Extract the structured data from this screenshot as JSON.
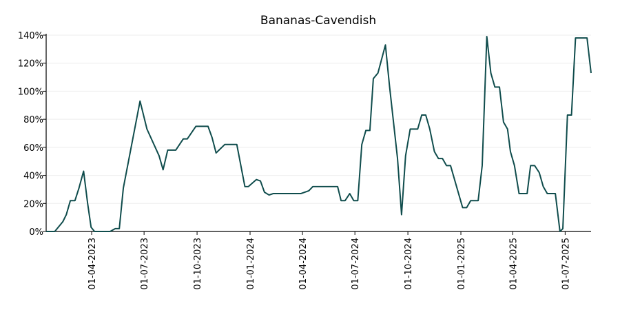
{
  "chart_data": {
    "type": "line",
    "title": "Bananas-Cavendish",
    "x": [
      "2023-01-12",
      "2023-01-27",
      "2023-02-10",
      "2023-02-16",
      "2023-02-23",
      "2023-03-03",
      "2023-03-10",
      "2023-03-18",
      "2023-03-25",
      "2023-03-31",
      "2023-04-06",
      "2023-05-03",
      "2023-05-12",
      "2023-05-19",
      "2023-05-26",
      "2023-06-24",
      "2023-07-06",
      "2023-07-27",
      "2023-08-03",
      "2023-08-11",
      "2023-08-25",
      "2023-09-07",
      "2023-09-14",
      "2023-09-29",
      "2023-10-20",
      "2023-10-27",
      "2023-11-03",
      "2023-11-18",
      "2023-12-09",
      "2023-12-23",
      "2023-12-29",
      "2024-01-12",
      "2024-01-19",
      "2024-01-26",
      "2024-02-03",
      "2024-02-10",
      "2024-03-29",
      "2024-04-12",
      "2024-04-19",
      "2024-06-01",
      "2024-06-07",
      "2024-06-14",
      "2024-06-22",
      "2024-06-29",
      "2024-07-06",
      "2024-07-13",
      "2024-07-20",
      "2024-07-27",
      "2024-08-02",
      "2024-08-10",
      "2024-08-23",
      "2024-08-30",
      "2024-09-13",
      "2024-09-20",
      "2024-09-27",
      "2024-10-05",
      "2024-10-18",
      "2024-10-25",
      "2024-11-01",
      "2024-11-08",
      "2024-11-16",
      "2024-11-23",
      "2024-11-30",
      "2024-12-07",
      "2024-12-14",
      "2025-01-04",
      "2025-01-11",
      "2025-01-18",
      "2025-01-31",
      "2025-02-07",
      "2025-02-15",
      "2025-02-22",
      "2025-03-01",
      "2025-03-09",
      "2025-03-16",
      "2025-03-23",
      "2025-03-28",
      "2025-04-04",
      "2025-04-12",
      "2025-04-26",
      "2025-05-02",
      "2025-05-09",
      "2025-05-17",
      "2025-05-24",
      "2025-05-31",
      "2025-06-14",
      "2025-06-22",
      "2025-06-27",
      "2025-07-05",
      "2025-07-12",
      "2025-07-19",
      "2025-08-08",
      "2025-08-15"
    ],
    "series": [
      {
        "name": "Bananas-Cavendish",
        "color": "#0f4c4c",
        "values": [
          0,
          0,
          7,
          12,
          22,
          22,
          31,
          43,
          20,
          3,
          0,
          0,
          2,
          2,
          31,
          93,
          73,
          54,
          44,
          58,
          58,
          66,
          66,
          75,
          75,
          67,
          56,
          62,
          62,
          32,
          32,
          37,
          36,
          28,
          26,
          27,
          27,
          29,
          32,
          32,
          22,
          22,
          27,
          22,
          22,
          62,
          72,
          72,
          109,
          113,
          133,
          104,
          52,
          12,
          54,
          73,
          73,
          83,
          83,
          73,
          57,
          52,
          52,
          47,
          47,
          17,
          17,
          22,
          22,
          47,
          139,
          113,
          103,
          103,
          78,
          73,
          57,
          47,
          27,
          27,
          47,
          47,
          42,
          32,
          27,
          27,
          0,
          2,
          83,
          83,
          138,
          138,
          113
        ]
      }
    ],
    "xlim": [
      "2023-01-12",
      "2025-08-15"
    ],
    "xticks": [
      {
        "value": "2023-04-01",
        "label": "01-04-2023"
      },
      {
        "value": "2023-07-01",
        "label": "01-07-2023"
      },
      {
        "value": "2023-10-01",
        "label": "01-10-2023"
      },
      {
        "value": "2024-01-01",
        "label": "01-01-2024"
      },
      {
        "value": "2024-04-01",
        "label": "01-04-2024"
      },
      {
        "value": "2024-07-01",
        "label": "01-07-2024"
      },
      {
        "value": "2024-10-01",
        "label": "01-10-2024"
      },
      {
        "value": "2025-01-01",
        "label": "01-01-2025"
      },
      {
        "value": "2025-04-01",
        "label": "01-04-2025"
      },
      {
        "value": "2025-07-01",
        "label": "01-07-2025"
      }
    ],
    "ylim": [
      0,
      140
    ],
    "yticks": [
      {
        "value": 0,
        "label": "0%"
      },
      {
        "value": 20,
        "label": "20%"
      },
      {
        "value": 40,
        "label": "40%"
      },
      {
        "value": 60,
        "label": "60%"
      },
      {
        "value": 80,
        "label": "80%"
      },
      {
        "value": 100,
        "label": "100%"
      },
      {
        "value": 120,
        "label": "120%"
      },
      {
        "value": 140,
        "label": "140%"
      }
    ],
    "grid": true
  }
}
